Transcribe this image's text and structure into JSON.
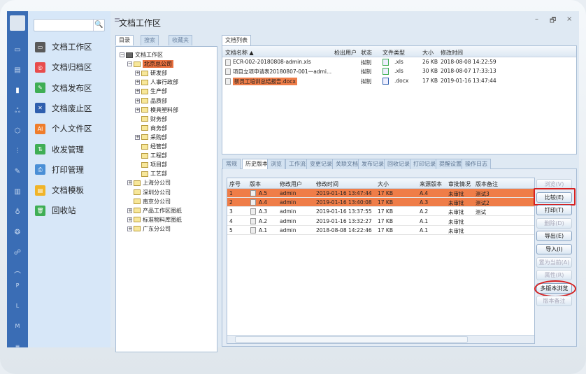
{
  "window": {
    "title": "文档工作区",
    "minimize": "–",
    "restore": "🗗",
    "close": "×"
  },
  "rail": {
    "items": [
      "monitor-icon",
      "dashboard-icon",
      "document-icon",
      "workflow-icon",
      "box-icon",
      "settings-sliders-icon",
      "wrench-icon",
      "books-icon",
      "bag-icon",
      "share-icon",
      "users-icon",
      "arc-icon"
    ],
    "letters": [
      "P",
      "L",
      "M",
      "≡"
    ]
  },
  "search": {
    "placeholder": "",
    "icon": "🔍"
  },
  "menu": [
    {
      "label": "文档工作区",
      "color": "#5a5a5a",
      "icon": "▭"
    },
    {
      "label": "文档归档区",
      "color": "#e84c4c",
      "icon": "◎"
    },
    {
      "label": "文档发布区",
      "color": "#3fae55",
      "icon": "✎"
    },
    {
      "label": "文档废止区",
      "color": "#2f5fae",
      "icon": "✕"
    },
    {
      "label": "个人文件区",
      "color": "#ef7d2b",
      "icon": "AI"
    },
    {
      "label": "收发管理",
      "color": "#3fae55",
      "icon": "⇅"
    },
    {
      "label": "打印管理",
      "color": "#4a8fd6",
      "icon": "⎙"
    },
    {
      "label": "文档模板",
      "color": "#f0b429",
      "icon": "▤"
    },
    {
      "label": "回收站",
      "color": "#3fae55",
      "icon": "🗑"
    }
  ],
  "left_tabs": [
    "目录",
    "搜索",
    "收藏夹"
  ],
  "tree": [
    {
      "label": "文档工作区",
      "level": 0,
      "pm": "−"
    },
    {
      "label": "北京总公司",
      "level": 1,
      "pm": "−",
      "selected": true
    },
    {
      "label": "研发部",
      "level": 2,
      "pm": "+"
    },
    {
      "label": "人事行政部",
      "level": 2,
      "pm": "+"
    },
    {
      "label": "生产部",
      "level": 2,
      "pm": "+"
    },
    {
      "label": "品质部",
      "level": 2,
      "pm": "+"
    },
    {
      "label": "模具塑料部",
      "level": 2,
      "pm": "+"
    },
    {
      "label": "财务部",
      "level": 2,
      "pm": ""
    },
    {
      "label": "商务部",
      "level": 2,
      "pm": ""
    },
    {
      "label": "采购部",
      "level": 2,
      "pm": "+"
    },
    {
      "label": "经管部",
      "level": 2,
      "pm": ""
    },
    {
      "label": "工程部",
      "level": 2,
      "pm": ""
    },
    {
      "label": "项目部",
      "level": 2,
      "pm": ""
    },
    {
      "label": "工艺部",
      "level": 2,
      "pm": ""
    },
    {
      "label": "上海分公司",
      "level": 1,
      "pm": "+"
    },
    {
      "label": "深圳分公司",
      "level": 1,
      "pm": ""
    },
    {
      "label": "南京分公司",
      "level": 1,
      "pm": ""
    },
    {
      "label": "产品工作区图纸",
      "level": 1,
      "pm": "+"
    },
    {
      "label": "标准物料库图纸",
      "level": 1,
      "pm": "+"
    },
    {
      "label": "广东分公司",
      "level": 1,
      "pm": "+"
    }
  ],
  "doclist": {
    "tab": "文档列表",
    "headers": [
      "文档名称 ▲",
      "检出用户",
      "状态",
      "文件类型",
      "大小",
      "修改时间"
    ],
    "rows": [
      {
        "name": "ECR-002-20180808-admin.xls",
        "user": "",
        "status": "拟制",
        "type": ".xls",
        "size": "26 KB",
        "time": "2018-08-08 14:22:59",
        "typecolor": "#3fae55"
      },
      {
        "name": "项目立项申请表20180807-001一admi...",
        "user": "",
        "status": "拟制",
        "type": ".xls",
        "size": "30 KB",
        "time": "2018-08-07 17:33:13",
        "typecolor": "#3fae55"
      },
      {
        "name": "新员工培训总结报告.docx",
        "user": "",
        "status": "拟制",
        "type": ".docx",
        "size": "17 KB",
        "time": "2019-01-16 13:47:44",
        "typecolor": "#2f5fae",
        "selected": true
      }
    ]
  },
  "detail_tabs": [
    "常规",
    "历史版本",
    "浏览",
    "工作流",
    "变更记录",
    "关联文档",
    "发布记录",
    "回收记录",
    "打印记录",
    "提醒设置",
    "操作日志"
  ],
  "active_detail_tab": 1,
  "history": {
    "headers": [
      "序号",
      "版本",
      "修改用户",
      "修改时间",
      "大小",
      "来源版本",
      "审批情况",
      "版本备注"
    ],
    "rows": [
      [
        "1",
        "A.5",
        "admin",
        "2019-01-16 13:47:44",
        "17 KB",
        "A.4",
        "未审批",
        "测试3"
      ],
      [
        "2",
        "A.4",
        "admin",
        "2019-01-16 13:40:08",
        "17 KB",
        "A.3",
        "未审批",
        "测试2"
      ],
      [
        "3",
        "A.3",
        "admin",
        "2019-01-16 13:37:55",
        "17 KB",
        "A.2",
        "未审批",
        "测试"
      ],
      [
        "4",
        "A.2",
        "admin",
        "2019-01-16 13:32:27",
        "17 KB",
        "A.1",
        "未审批",
        ""
      ],
      [
        "5",
        "A.1",
        "admin",
        "2018-08-08 14:22:46",
        "17 KB",
        "A.1",
        "未审批",
        ""
      ]
    ],
    "selected_rows": [
      0,
      1
    ]
  },
  "buttons": [
    {
      "label": "浏览(V)",
      "enabled": false
    },
    {
      "label": "比较(E)",
      "enabled": true,
      "highlight": "rect"
    },
    {
      "label": "打印(T)",
      "enabled": true
    },
    {
      "label": "删除(D)",
      "enabled": false
    },
    {
      "label": "导出(E)",
      "enabled": true
    },
    {
      "label": "导入(I)",
      "enabled": true
    },
    {
      "label": "置为当前(A)",
      "enabled": false
    },
    {
      "label": "属性(R)",
      "enabled": false
    },
    {
      "label": "多版本浏览",
      "enabled": true,
      "highlight": "ellipse"
    },
    {
      "label": "版本备注",
      "enabled": false
    }
  ],
  "colors": {
    "selection": "#ef7d48",
    "rail": "#3a6db5",
    "menu_bg": "#d7e7f8",
    "highlight": "#d62020"
  }
}
